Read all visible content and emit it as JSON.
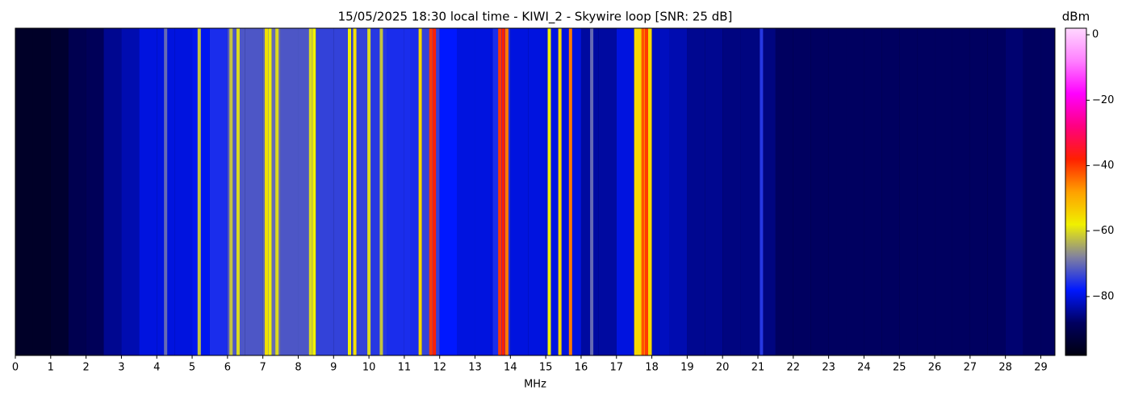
{
  "chart_data": {
    "type": "heatmap",
    "title": "15/05/2025 18:30 local time - KIWI_2 - Skywire loop [SNR: 25 dB]",
    "x_label": "MHz",
    "colorbar_label": "dBm",
    "xlim": [
      0,
      29.4
    ],
    "xticks": [
      0,
      1,
      2,
      3,
      4,
      5,
      6,
      7,
      8,
      9,
      10,
      11,
      12,
      13,
      14,
      15,
      16,
      17,
      18,
      19,
      20,
      21,
      22,
      23,
      24,
      25,
      26,
      27,
      28,
      29
    ],
    "clim": [
      -98,
      2
    ],
    "cticks": [
      {
        "value": 0,
        "label": "0"
      },
      {
        "value": -20,
        "label": "−20"
      },
      {
        "value": -40,
        "label": "−40"
      },
      {
        "value": -60,
        "label": "−60"
      },
      {
        "value": -80,
        "label": "−80"
      }
    ],
    "colormap": [
      "#000010",
      "#000060",
      "#0018ff",
      "#8080a0",
      "#f0f000",
      "#ffa000",
      "#ff2000",
      "#ff0080",
      "#ff00ff",
      "#ff80ff",
      "#ffd8ff"
    ],
    "x": [
      0.25,
      0.75,
      1.25,
      1.75,
      2.25,
      2.75,
      3.25,
      3.75,
      4.25,
      4.75,
      5.25,
      5.75,
      6.25,
      6.75,
      7.25,
      7.75,
      8.25,
      8.75,
      9.25,
      9.75,
      10.25,
      10.75,
      11.25,
      11.75,
      12.25,
      12.75,
      13.25,
      13.75,
      14.25,
      14.75,
      15.25,
      15.75,
      16.25,
      16.75,
      17.25,
      17.75,
      18.25,
      18.75,
      19.25,
      19.75,
      20.25,
      20.75,
      21.25,
      21.75,
      22.25,
      22.75,
      23.25,
      23.75,
      24.25,
      24.75,
      25.25,
      25.75,
      26.25,
      26.75,
      27.25,
      27.75,
      28.25,
      28.75,
      29.25
    ],
    "values": [
      -95,
      -95,
      -94,
      -90,
      -89,
      -85,
      -83,
      -80,
      -80,
      -80,
      -79,
      -76,
      -72,
      -72,
      -70,
      -72,
      -72,
      -74,
      -74,
      -74,
      -75,
      -76,
      -76,
      -74,
      -78,
      -80,
      -80,
      -76,
      -80,
      -80,
      -80,
      -80,
      -84,
      -84,
      -80,
      -55,
      -82,
      -83,
      -85,
      -85,
      -86,
      -86,
      -86,
      -88,
      -88,
      -88,
      -88,
      -88,
      -88,
      -88,
      -88,
      -88,
      -88,
      -88,
      -88,
      -88,
      -87,
      -88,
      -88
    ],
    "peaks": {
      "x": [
        4.25,
        5.2,
        6.1,
        6.3,
        7.1,
        7.2,
        7.4,
        8.35,
        8.45,
        9.45,
        9.6,
        10.0,
        10.35,
        11.45,
        11.75,
        11.85,
        13.7,
        13.8,
        13.9,
        15.1,
        15.4,
        15.7,
        16.3,
        17.75,
        17.85,
        21.1
      ],
      "values": [
        -70,
        -62,
        -62,
        -60,
        -56,
        -58,
        -60,
        -60,
        -58,
        -58,
        -56,
        -60,
        -62,
        -55,
        -40,
        -38,
        -40,
        -38,
        -45,
        -58,
        -55,
        -45,
        -70,
        -42,
        -40,
        -75
      ]
    }
  }
}
